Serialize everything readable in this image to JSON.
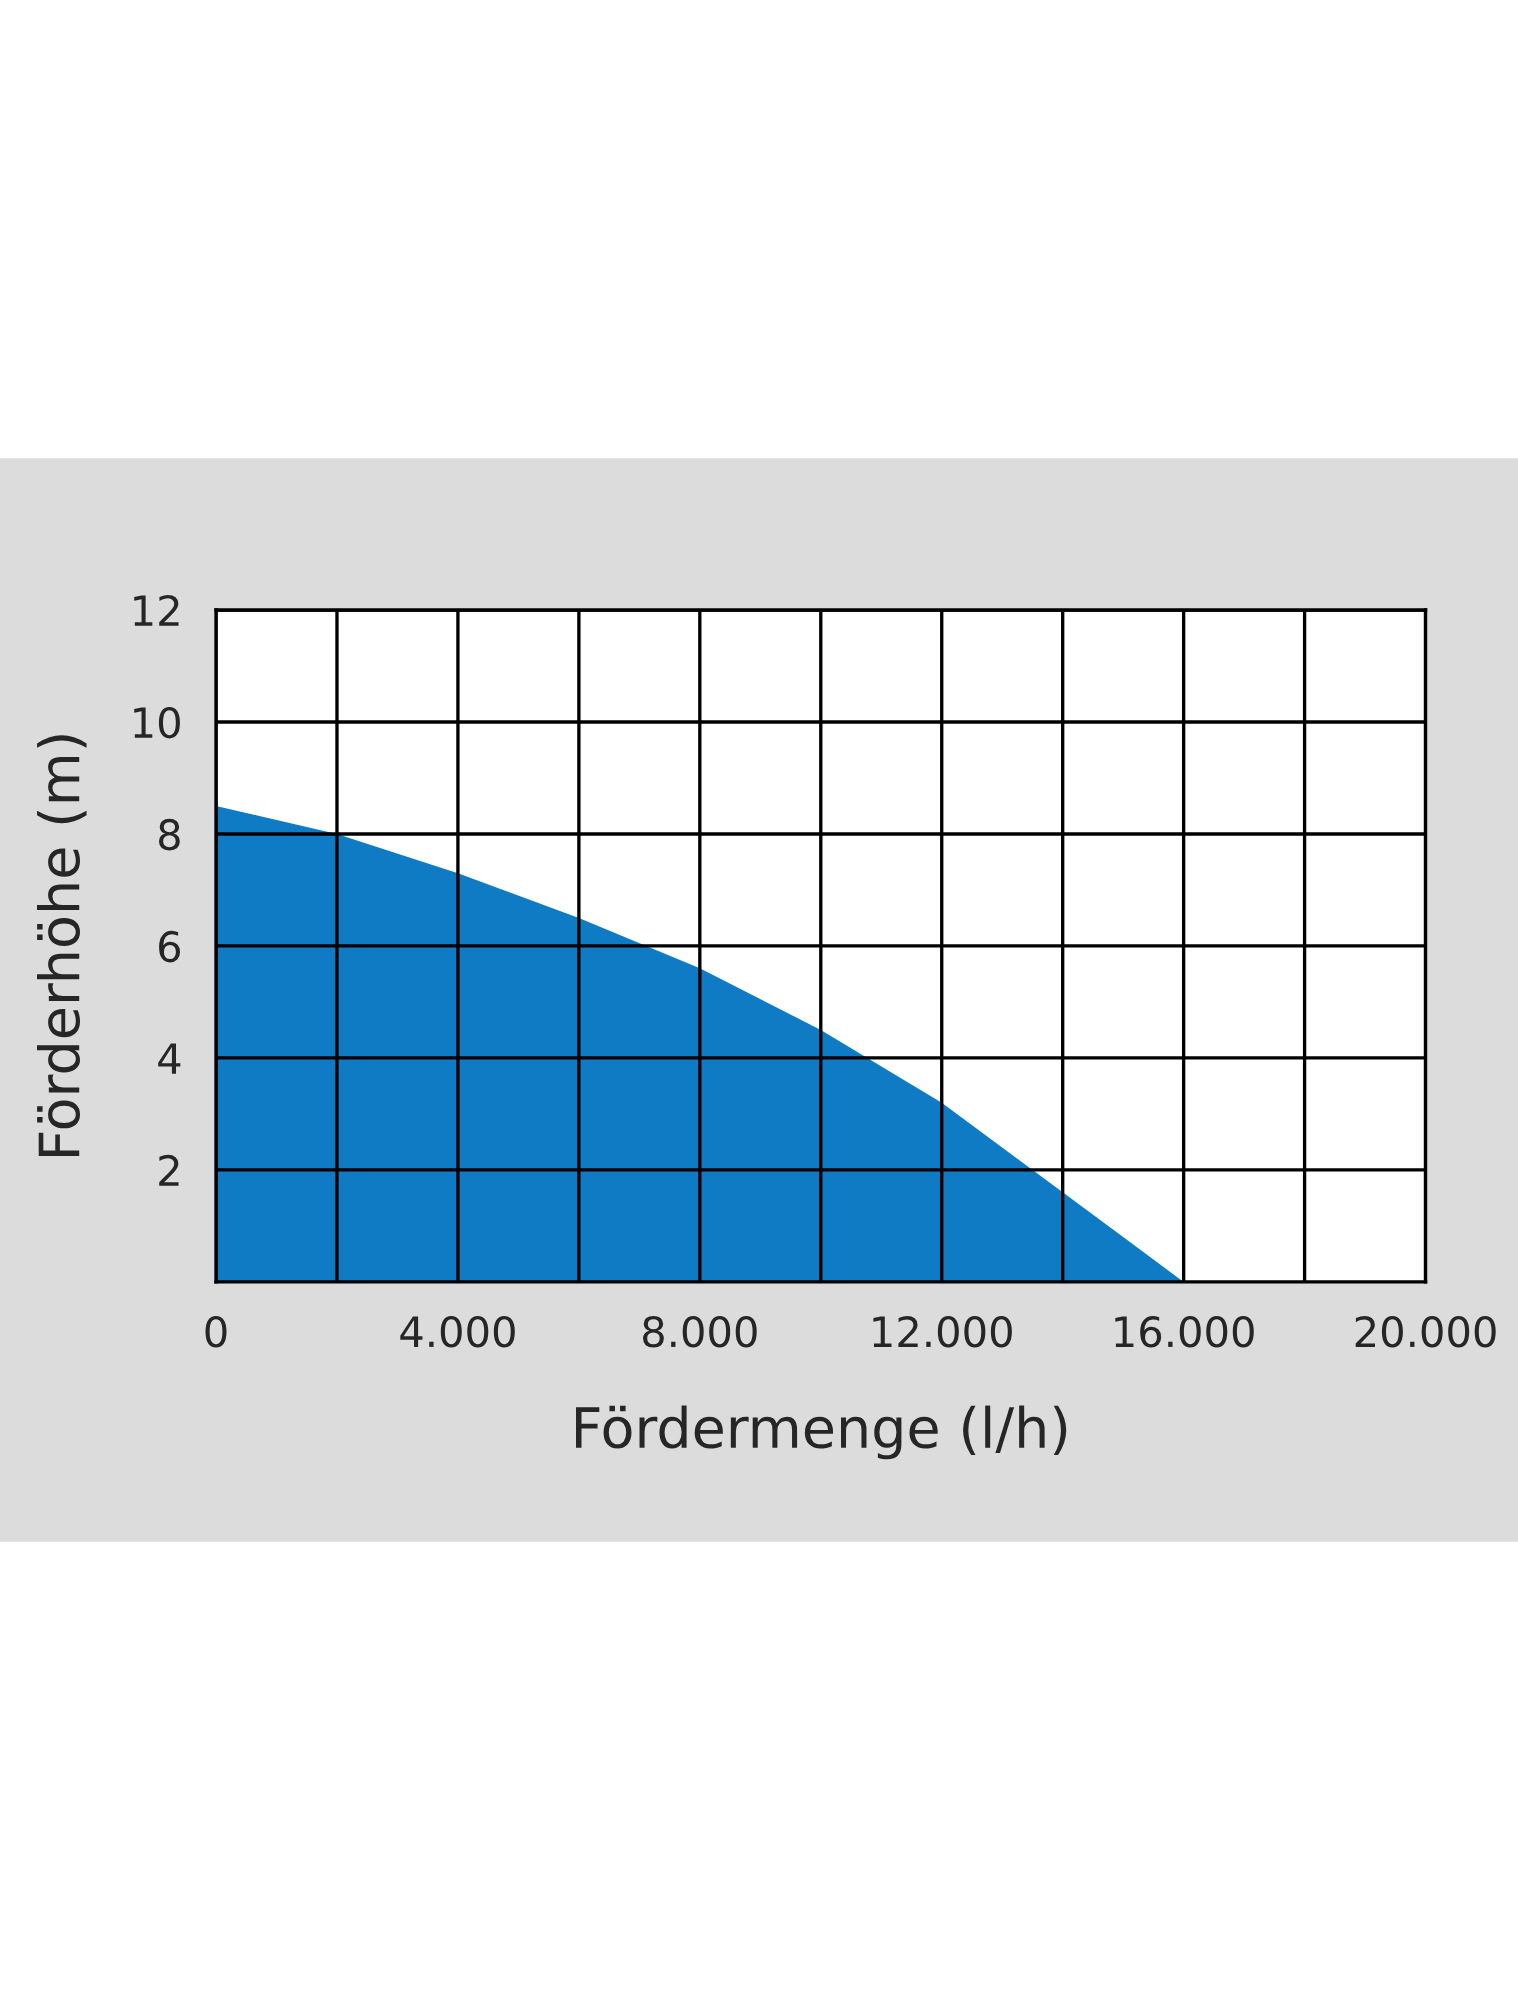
{
  "chart_data": {
    "type": "area",
    "xlabel": "Fördermenge (l/h)",
    "ylabel": "Förderhöhe (m)",
    "x": [
      0,
      2000,
      4000,
      6000,
      8000,
      10000,
      12000,
      14000,
      15000,
      16000
    ],
    "series": [
      {
        "color": "#0e7bc4",
        "values": [
          8.5,
          8.0,
          7.3,
          6.5,
          5.6,
          4.5,
          3.2,
          1.6,
          0.8,
          0
        ]
      }
    ],
    "xlim": [
      0,
      20000
    ],
    "xticks": [
      0,
      {
        "value": 4000,
        "label": "4.000"
      },
      {
        "value": 8000,
        "label": "8.000"
      },
      {
        "value": 12000,
        "label": "12.000"
      },
      {
        "value": 16000,
        "label": "16.000"
      },
      {
        "value": 20000,
        "label": "20.000"
      }
    ],
    "ylim": [
      0,
      12
    ],
    "yticks": [
      2,
      4,
      6,
      8,
      10,
      12
    ],
    "grid": true
  }
}
